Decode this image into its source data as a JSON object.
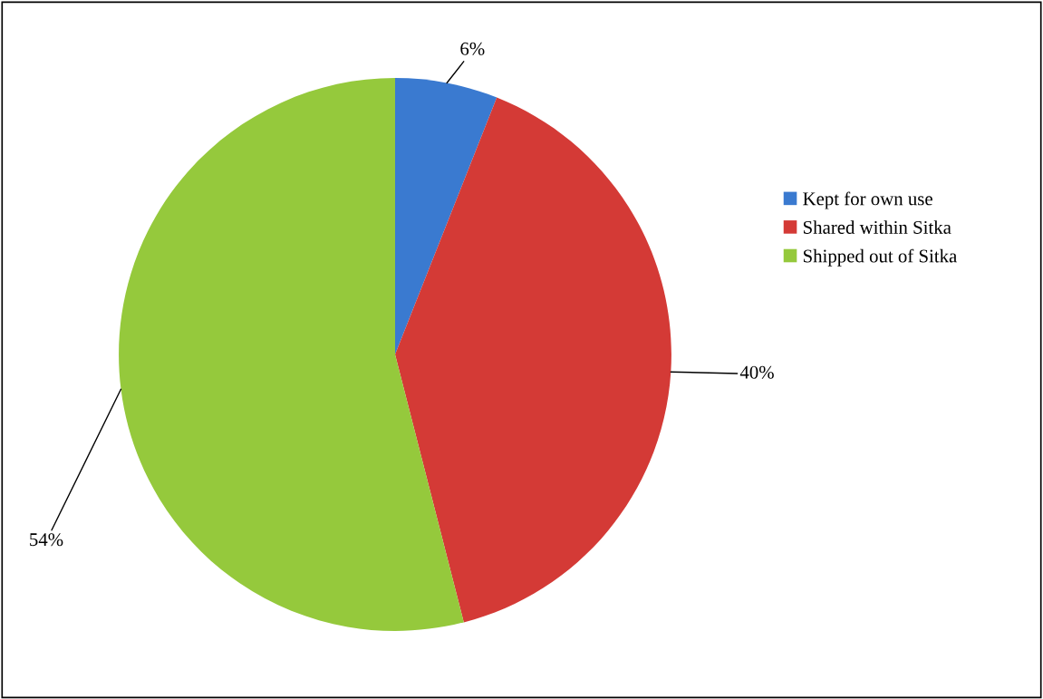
{
  "chart_data": {
    "type": "pie",
    "categories": [
      "Kept for own use",
      "Shared within Sitka",
      "Shipped out of Sitka"
    ],
    "values": [
      6,
      40,
      54
    ],
    "colors": [
      "#3a7ad0",
      "#d43a36",
      "#95c93c"
    ],
    "value_labels": [
      "6%",
      "40%",
      "54%"
    ],
    "legend": "right"
  }
}
